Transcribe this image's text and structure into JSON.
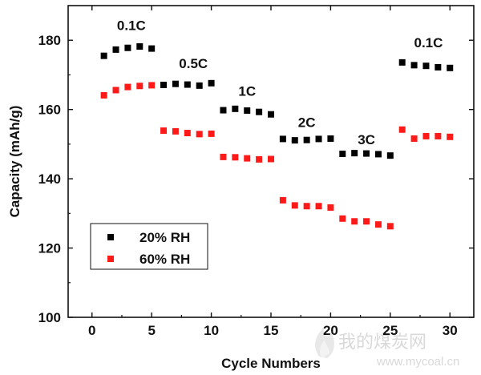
{
  "chart_data": {
    "type": "scatter",
    "xlabel": "Cycle Numbers",
    "ylabel": "Capacity (mAh/g)",
    "xlim": [
      -2,
      32
    ],
    "ylim": [
      100,
      190
    ],
    "xticks": [
      0,
      5,
      10,
      15,
      20,
      25,
      30
    ],
    "yticks": [
      100,
      120,
      140,
      160,
      180
    ],
    "legend_position": "lower-left",
    "series": [
      {
        "name": "20% RH",
        "color": "#000000",
        "marker": "square",
        "x": [
          1,
          2,
          3,
          4,
          5,
          6,
          7,
          8,
          9,
          10,
          11,
          12,
          13,
          14,
          15,
          16,
          17,
          18,
          19,
          20,
          21,
          22,
          23,
          24,
          25,
          26,
          27,
          28,
          29,
          30
        ],
        "y": [
          175.5,
          177.3,
          177.8,
          178.2,
          177.6,
          167.1,
          167.4,
          167.2,
          166.9,
          167.6,
          159.8,
          160.2,
          159.7,
          159.3,
          158.6,
          151.5,
          151.1,
          151.2,
          151.5,
          151.6,
          147.2,
          147.4,
          147.3,
          147.1,
          146.7,
          173.6,
          172.8,
          172.6,
          172.2,
          172.0
        ]
      },
      {
        "name": "60% RH",
        "color": "#ff1a1a",
        "marker": "square",
        "x": [
          1,
          2,
          3,
          4,
          5,
          6,
          7,
          8,
          9,
          10,
          11,
          12,
          13,
          14,
          15,
          16,
          17,
          18,
          19,
          20,
          21,
          22,
          23,
          24,
          25,
          26,
          27,
          28,
          29,
          30
        ],
        "y": [
          164.1,
          165.6,
          166.5,
          166.8,
          167.0,
          153.9,
          153.7,
          153.2,
          152.9,
          153.0,
          146.3,
          146.2,
          145.9,
          145.6,
          145.7,
          133.8,
          132.3,
          132.1,
          132.1,
          131.7,
          128.5,
          127.7,
          127.7,
          126.8,
          126.3,
          154.2,
          151.6,
          152.3,
          152.3,
          152.1
        ]
      }
    ],
    "annotations": [
      {
        "text": "0.1C",
        "x": 3.3,
        "y": 183
      },
      {
        "text": "0.5C",
        "x": 8.5,
        "y": 172
      },
      {
        "text": "1C",
        "x": 13.0,
        "y": 164
      },
      {
        "text": "2C",
        "x": 18.0,
        "y": 155
      },
      {
        "text": "3C",
        "x": 23.0,
        "y": 150
      },
      {
        "text": "0.1C",
        "x": 28.2,
        "y": 178
      }
    ]
  },
  "watermark": {
    "text": "我的煤炭网",
    "url": "www.mycoal.cn"
  }
}
